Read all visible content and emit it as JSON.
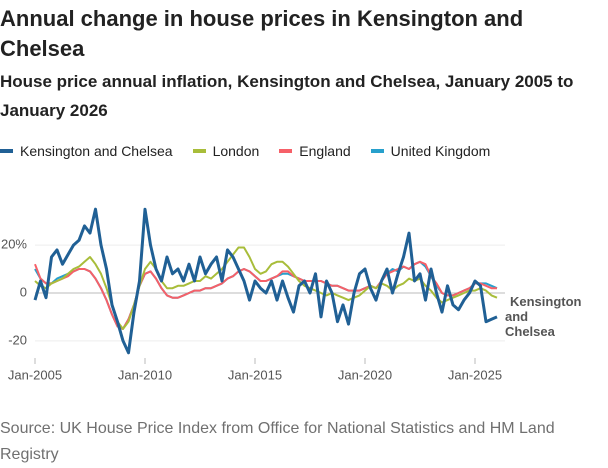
{
  "chart_data": {
    "type": "line",
    "title": "Annual change in house prices in Kensington and Chelsea",
    "subtitle": "House price annual inflation, Kensington and Chelsea, January 2005 to January 2026",
    "source": "Source: UK House Price Index from Office for National Statistics and HM Land Registry",
    "annotation": [
      "Kensington",
      "and",
      "Chelsea"
    ],
    "xlim": [
      "Jan-2005",
      "Jan-2026"
    ],
    "xticks": [
      "Jan-2005",
      "Jan-2010",
      "Jan-2015",
      "Jan-2020",
      "Jan-2025"
    ],
    "ylim": [
      -28,
      43
    ],
    "yticks": [
      -20,
      0,
      {
        "value": 20,
        "label": "20%"
      }
    ],
    "grid": true,
    "x": [
      "Jan-2005",
      "Apr-2005",
      "Jul-2005",
      "Oct-2005",
      "Jan-2006",
      "Apr-2006",
      "Jul-2006",
      "Oct-2006",
      "Jan-2007",
      "Apr-2007",
      "Jul-2007",
      "Oct-2007",
      "Jan-2008",
      "Apr-2008",
      "Jul-2008",
      "Oct-2008",
      "Jan-2009",
      "Apr-2009",
      "Jul-2009",
      "Oct-2009",
      "Jan-2010",
      "Apr-2010",
      "Jul-2010",
      "Oct-2010",
      "Jan-2011",
      "Apr-2011",
      "Jul-2011",
      "Oct-2011",
      "Jan-2012",
      "Apr-2012",
      "Jul-2012",
      "Oct-2012",
      "Jan-2013",
      "Apr-2013",
      "Jul-2013",
      "Oct-2013",
      "Jan-2014",
      "Apr-2014",
      "Jul-2014",
      "Oct-2014",
      "Jan-2015",
      "Apr-2015",
      "Jul-2015",
      "Oct-2015",
      "Jan-2016",
      "Apr-2016",
      "Jul-2016",
      "Oct-2016",
      "Jan-2017",
      "Apr-2017",
      "Jul-2017",
      "Oct-2017",
      "Jan-2018",
      "Apr-2018",
      "Jul-2018",
      "Oct-2018",
      "Jan-2019",
      "Apr-2019",
      "Jul-2019",
      "Oct-2019",
      "Jan-2020",
      "Apr-2020",
      "Jul-2020",
      "Oct-2020",
      "Jan-2021",
      "Apr-2021",
      "Jul-2021",
      "Oct-2021",
      "Jan-2022",
      "Apr-2022",
      "Jul-2022",
      "Oct-2022",
      "Jan-2023",
      "Apr-2023",
      "Jul-2023",
      "Oct-2023",
      "Jan-2024",
      "Apr-2024",
      "Jul-2024",
      "Oct-2024",
      "Jan-2025",
      "Apr-2025",
      "Jul-2025",
      "Oct-2025",
      "Jan-2026"
    ],
    "series": [
      {
        "name": "Kensington and Chelsea",
        "color": "#206095",
        "values": [
          -3,
          5,
          -2,
          15,
          18,
          12,
          16,
          20,
          22,
          28,
          25,
          35,
          20,
          10,
          -5,
          -12,
          -20,
          -25,
          -8,
          5,
          35,
          20,
          10,
          5,
          15,
          8,
          10,
          5,
          12,
          5,
          15,
          8,
          12,
          15,
          5,
          18,
          15,
          10,
          5,
          -3,
          5,
          2,
          0,
          5,
          -3,
          5,
          -2,
          -8,
          3,
          5,
          0,
          8,
          -10,
          5,
          0,
          -12,
          -5,
          -13,
          0,
          8,
          10,
          2,
          -3,
          5,
          10,
          0,
          8,
          15,
          25,
          5,
          8,
          -3,
          10,
          0,
          -8,
          3,
          -5,
          -7,
          -3,
          0,
          5,
          3,
          -12,
          -11,
          -10
        ]
      },
      {
        "name": "London",
        "color": "#a8bd3a",
        "values": [
          5,
          3,
          2,
          4,
          5,
          6,
          8,
          10,
          11,
          13,
          15,
          12,
          8,
          2,
          -5,
          -12,
          -15,
          -12,
          -5,
          3,
          10,
          13,
          10,
          5,
          2,
          2,
          3,
          3,
          4,
          5,
          5,
          7,
          6,
          8,
          10,
          13,
          16,
          19,
          19,
          15,
          10,
          8,
          9,
          12,
          13,
          13,
          11,
          8,
          5,
          3,
          2,
          1,
          0,
          -1,
          0,
          -1,
          -2,
          -3,
          -2,
          -1,
          1,
          3,
          2,
          4,
          3,
          1,
          3,
          4,
          6,
          5,
          6,
          3,
          1,
          -2,
          -4,
          -3,
          -2,
          -1,
          0,
          1,
          1,
          2,
          1,
          -1,
          -2
        ]
      },
      {
        "name": "England",
        "color": "#f66068",
        "values": [
          12,
          6,
          4,
          4,
          5,
          6,
          7,
          9,
          10,
          10,
          9,
          6,
          2,
          -3,
          -9,
          -14,
          -15,
          -11,
          -5,
          3,
          8,
          9,
          6,
          2,
          -1,
          -2,
          -2,
          -1,
          0,
          1,
          1,
          2,
          2,
          3,
          4,
          6,
          7,
          9,
          10,
          9,
          7,
          5,
          5,
          6,
          7,
          9,
          9,
          7,
          6,
          5,
          5,
          5,
          5,
          4,
          3,
          3,
          2,
          1,
          1,
          1,
          2,
          3,
          2,
          5,
          8,
          9,
          10,
          11,
          10,
          12,
          13,
          12,
          7,
          4,
          0,
          -1,
          -1,
          0,
          1,
          2,
          4,
          4,
          3,
          2,
          2
        ]
      },
      {
        "name": "United Kingdom",
        "color": "#27a0cc",
        "values": [
          10,
          6,
          4,
          4,
          6,
          7,
          8,
          9,
          10,
          10,
          9,
          6,
          2,
          -3,
          -9,
          -14,
          -15,
          -11,
          -5,
          3,
          8,
          9,
          6,
          2,
          -1,
          -2,
          -2,
          -1,
          0,
          1,
          1,
          2,
          2,
          3,
          4,
          6,
          7,
          9,
          10,
          9,
          7,
          5,
          5,
          6,
          7,
          8,
          8,
          7,
          6,
          5,
          5,
          5,
          5,
          4,
          3,
          3,
          2,
          1,
          1,
          1,
          2,
          3,
          2,
          5,
          8,
          10,
          9,
          11,
          10,
          12,
          13,
          11,
          7,
          3,
          0,
          -1,
          -1,
          0,
          1,
          2,
          4,
          4,
          4,
          3,
          2
        ]
      }
    ]
  }
}
